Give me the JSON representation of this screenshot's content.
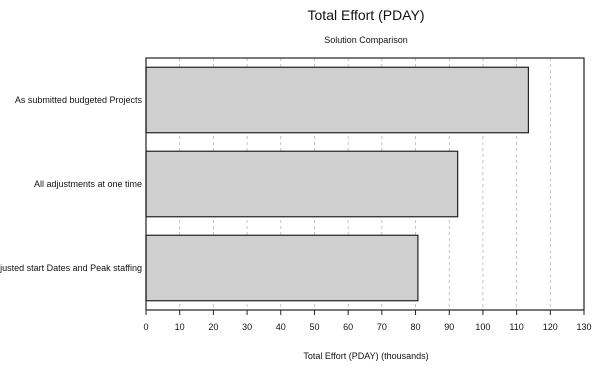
{
  "chart_data": {
    "type": "bar",
    "orientation": "horizontal",
    "title": "Total Effort (PDAY)",
    "subtitle": "Solution Comparison",
    "xlabel": "Total Effort (PDAY) (thousands)",
    "ylabel": "",
    "categories": [
      "As submitted budgeted Projects",
      "All adjustments at one time",
      "Adjusted start Dates and Peak staffing"
    ],
    "values": [
      113.5,
      92.5,
      80.7
    ],
    "xlim": [
      0,
      130
    ],
    "ticks": [
      0,
      10,
      20,
      30,
      40,
      50,
      60,
      70,
      80,
      90,
      100,
      110,
      120,
      130
    ],
    "grid": true,
    "bar_color": "#cfcfcf",
    "edge_color": "#222222"
  }
}
